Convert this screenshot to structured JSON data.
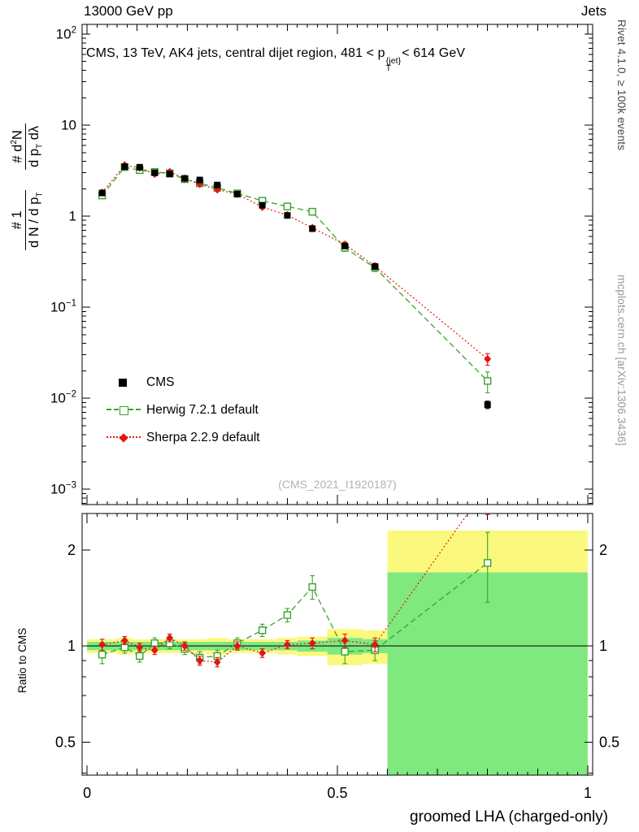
{
  "header": {
    "left": "13000 GeV pp",
    "right": "Jets"
  },
  "title": {
    "pre": "CMS, 13 TeV, AK4 jets, central dijet region, 481 < p",
    "sup": "{jet}",
    "sub": "T",
    "post": "< 614 GeV"
  },
  "ylabel_main": {
    "num1": "# 1",
    "den1_a": "d N / d p",
    "den1_sub": "T",
    "num2_a": "# d",
    "num2_sup": "2",
    "num2_b": "N",
    "den2_a": "d p",
    "den2_sub": "T",
    "den2_b": " dλ"
  },
  "ratio_ylabel": "Ratio to CMS",
  "xlabel": "groomed LHA (charged-only)",
  "watermark": "(CMS_2021_I1920187)",
  "side_notes": {
    "rivet": "Rivet 4.1.0, ≥ 100k events",
    "mcplots": "mcplots.cern.ch [arXiv:1306.3436]"
  },
  "legend": [
    {
      "label": "CMS",
      "marker": "square-filled",
      "color": "#000000",
      "line": "none"
    },
    {
      "label": "Herwig 7.2.1 default",
      "marker": "square-open",
      "color": "#3aa32a",
      "line": "dashed"
    },
    {
      "label": "Sherpa 2.2.9 default",
      "marker": "diamond-filled",
      "color": "#e4150f",
      "line": "dotted"
    }
  ],
  "chart_data": {
    "type": "line",
    "title": "CMS, 13 TeV, AK4 jets, central dijet region, 481 < pT{jet} < 614 GeV",
    "xlabel": "groomed LHA (charged-only)",
    "ylabel": "1/(dN/dpT) d²N/(dpT dλ)",
    "legend_position": "left-middle",
    "grid": false,
    "xlim": [
      0,
      1
    ],
    "xticks": {
      "values": [
        0,
        0.5,
        1
      ],
      "labels": [
        "0",
        "0.5",
        "1"
      ]
    },
    "main": {
      "ylog": true,
      "ylim": [
        0.00068,
        128
      ],
      "ytick_exps": [
        2,
        1,
        0,
        -1,
        -2,
        -3
      ]
    },
    "ratio_panel": {
      "ylog": true,
      "ylim": [
        0.394,
        2.6
      ],
      "yticks": {
        "values": [
          2,
          1,
          0.5
        ],
        "labels": [
          "2",
          "1",
          "0.5"
        ]
      },
      "minor_ticks": [
        0.4,
        0.6,
        0.7,
        0.8,
        0.9
      ],
      "ref_line": 1,
      "ylabel": "Ratio to CMS"
    },
    "x": [
      0.03,
      0.075,
      0.105,
      0.135,
      0.165,
      0.195,
      0.225,
      0.26,
      0.3,
      0.35,
      0.4,
      0.45,
      0.515,
      0.575,
      0.8
    ],
    "series": [
      {
        "name": "CMS",
        "color": "#000000",
        "marker": "square-filled",
        "line": "none",
        "values": [
          1.8,
          3.5,
          3.45,
          3.0,
          2.9,
          2.6,
          2.5,
          2.2,
          1.75,
          1.32,
          1.02,
          0.73,
          0.47,
          0.28,
          0.0085
        ],
        "yerr": [
          0.12,
          0.2,
          0.18,
          0.15,
          0.14,
          0.13,
          0.12,
          0.11,
          0.09,
          0.07,
          0.06,
          0.05,
          0.03,
          0.02,
          0.0008
        ]
      },
      {
        "name": "Herwig 7.2.1 default",
        "color": "#3aa32a",
        "marker": "square-open",
        "line": "dashed",
        "values": [
          1.69,
          3.46,
          3.21,
          3.06,
          2.96,
          2.55,
          2.3,
          2.05,
          1.78,
          1.48,
          1.28,
          1.12,
          0.45,
          0.272,
          0.0155
        ],
        "yerr": [
          0.1,
          0.12,
          0.11,
          0.1,
          0.1,
          0.09,
          0.08,
          0.08,
          0.07,
          0.07,
          0.07,
          0.09,
          0.04,
          0.025,
          0.004
        ]
      },
      {
        "name": "Sherpa 2.2.9 default",
        "color": "#e4150f",
        "marker": "diamond-filled",
        "line": "dotted",
        "values": [
          1.82,
          3.64,
          3.41,
          2.91,
          3.07,
          2.6,
          2.25,
          1.96,
          1.75,
          1.26,
          1.03,
          0.745,
          0.49,
          0.283,
          0.027
        ],
        "yerr": [
          0.07,
          0.1,
          0.1,
          0.09,
          0.09,
          0.08,
          0.08,
          0.07,
          0.06,
          0.05,
          0.04,
          0.04,
          0.03,
          0.02,
          0.004
        ]
      }
    ],
    "ratio": {
      "series": [
        {
          "name": "Herwig 7.2.1 default",
          "values": [
            0.94,
            0.99,
            0.93,
            1.02,
            1.02,
            0.98,
            0.92,
            0.93,
            1.02,
            1.12,
            1.25,
            1.53,
            0.96,
            0.97,
            1.82
          ],
          "yerr": [
            0.06,
            0.04,
            0.04,
            0.04,
            0.04,
            0.04,
            0.04,
            0.04,
            0.04,
            0.05,
            0.06,
            0.13,
            0.08,
            0.07,
            0.45
          ]
        },
        {
          "name": "Sherpa 2.2.9 default",
          "values": [
            1.01,
            1.04,
            0.99,
            0.97,
            1.06,
            1.0,
            0.9,
            0.89,
            1.0,
            0.95,
            1.01,
            1.02,
            1.04,
            1.01,
            3.18
          ],
          "yerr": [
            0.04,
            0.03,
            0.03,
            0.03,
            0.03,
            0.03,
            0.03,
            0.03,
            0.03,
            0.03,
            0.03,
            0.04,
            0.05,
            0.05,
            0.6
          ]
        }
      ],
      "bands": [
        {
          "x0": 0.0,
          "x1": 0.06,
          "yellow": [
            0.95,
            1.05
          ],
          "green": [
            0.97,
            1.03
          ]
        },
        {
          "x0": 0.06,
          "x1": 0.09,
          "yellow": [
            0.94,
            1.06
          ],
          "green": [
            0.97,
            1.03
          ]
        },
        {
          "x0": 0.09,
          "x1": 0.12,
          "yellow": [
            0.95,
            1.05
          ],
          "green": [
            0.97,
            1.03
          ]
        },
        {
          "x0": 0.12,
          "x1": 0.15,
          "yellow": [
            0.95,
            1.05
          ],
          "green": [
            0.97,
            1.03
          ]
        },
        {
          "x0": 0.15,
          "x1": 0.18,
          "yellow": [
            0.95,
            1.05
          ],
          "green": [
            0.97,
            1.03
          ]
        },
        {
          "x0": 0.18,
          "x1": 0.21,
          "yellow": [
            0.95,
            1.05
          ],
          "green": [
            0.97,
            1.03
          ]
        },
        {
          "x0": 0.21,
          "x1": 0.24,
          "yellow": [
            0.95,
            1.05
          ],
          "green": [
            0.97,
            1.03
          ]
        },
        {
          "x0": 0.24,
          "x1": 0.28,
          "yellow": [
            0.94,
            1.06
          ],
          "green": [
            0.97,
            1.03
          ]
        },
        {
          "x0": 0.28,
          "x1": 0.32,
          "yellow": [
            0.95,
            1.05
          ],
          "green": [
            0.97,
            1.03
          ]
        },
        {
          "x0": 0.32,
          "x1": 0.38,
          "yellow": [
            0.95,
            1.05
          ],
          "green": [
            0.97,
            1.03
          ]
        },
        {
          "x0": 0.38,
          "x1": 0.42,
          "yellow": [
            0.94,
            1.06
          ],
          "green": [
            0.97,
            1.03
          ]
        },
        {
          "x0": 0.42,
          "x1": 0.48,
          "yellow": [
            0.93,
            1.07
          ],
          "green": [
            0.96,
            1.04
          ]
        },
        {
          "x0": 0.48,
          "x1": 0.55,
          "yellow": [
            0.87,
            1.13
          ],
          "green": [
            0.94,
            1.06
          ]
        },
        {
          "x0": 0.55,
          "x1": 0.6,
          "yellow": [
            0.88,
            1.12
          ],
          "green": [
            0.95,
            1.05
          ]
        },
        {
          "x0": 0.6,
          "x1": 1.0,
          "yellow": [
            0.35,
            2.3
          ],
          "green": [
            0.35,
            1.7
          ]
        }
      ]
    },
    "colors": {
      "band_yellow": "#fbf87e",
      "band_green": "#7fe87f"
    }
  }
}
